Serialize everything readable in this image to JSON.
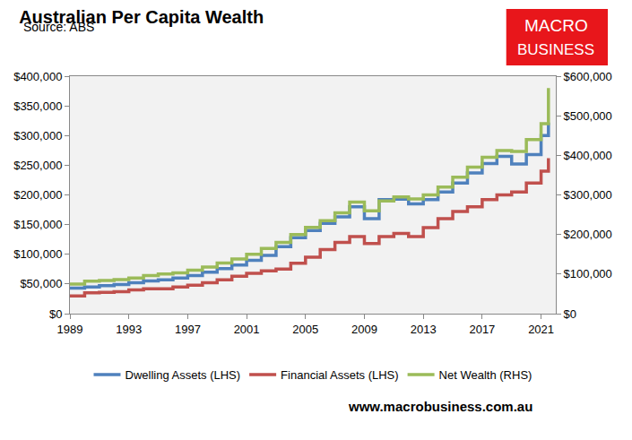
{
  "chart_data": {
    "type": "line",
    "title": "Australian Per Capita Wealth",
    "subtitle": "Source: ABS",
    "annotations": [
      "MACRO",
      "BUSINESS",
      "www.macrobusiness.com.au"
    ],
    "line_style": "step",
    "grid": false,
    "legend": "bottom",
    "x": [
      1989,
      1990,
      1991,
      1992,
      1993,
      1994,
      1995,
      1996,
      1997,
      1998,
      1999,
      2000,
      2001,
      2002,
      2003,
      2004,
      2005,
      2006,
      2007,
      2008,
      2009,
      2010,
      2011,
      2012,
      2013,
      2014,
      2015,
      2016,
      2017,
      2018,
      2019,
      2020,
      2021,
      2021.5
    ],
    "series": [
      {
        "name": "Dwelling Assets (LHS)",
        "color": "#4f81bd",
        "values": [
          43000,
          45000,
          47000,
          49000,
          52000,
          55000,
          57000,
          60000,
          64000,
          70000,
          76000,
          82000,
          90000,
          98000,
          113000,
          128000,
          140000,
          152000,
          163000,
          180000,
          160000,
          192000,
          193000,
          185000,
          192000,
          205000,
          220000,
          237000,
          253000,
          265000,
          252000,
          268000,
          300000,
          322000
        ]
      },
      {
        "name": "Financial Assets (LHS)",
        "color": "#c0504d",
        "values": [
          30000,
          35000,
          36000,
          37000,
          40000,
          42000,
          42000,
          45000,
          48000,
          52000,
          57000,
          63000,
          68000,
          72000,
          75000,
          85000,
          95000,
          108000,
          120000,
          130000,
          118000,
          130000,
          135000,
          130000,
          145000,
          160000,
          172000,
          180000,
          192000,
          200000,
          205000,
          220000,
          240000,
          262000
        ]
      },
      {
        "name": "Net Wealth (RHS)",
        "color": "#9bbb59",
        "axis": "y2",
        "values": [
          75000,
          82000,
          84000,
          86000,
          90000,
          96000,
          100000,
          103000,
          110000,
          118000,
          128000,
          138000,
          150000,
          165000,
          180000,
          200000,
          218000,
          235000,
          255000,
          282000,
          260000,
          285000,
          295000,
          290000,
          300000,
          320000,
          345000,
          370000,
          395000,
          412000,
          410000,
          440000,
          480000,
          570000
        ]
      }
    ],
    "xlim": [
      1989,
      2022
    ],
    "xticks": [
      1989,
      1993,
      1997,
      2001,
      2005,
      2009,
      2013,
      2017,
      2021
    ],
    "ylim": [
      0,
      400000
    ],
    "yticks": [
      {
        "value": 0,
        "label": "$0"
      },
      {
        "value": 50000,
        "label": "$50,000"
      },
      {
        "value": 100000,
        "label": "$100,000"
      },
      {
        "value": 150000,
        "label": "$150,000"
      },
      {
        "value": 200000,
        "label": "$200,000"
      },
      {
        "value": 250000,
        "label": "$250,000"
      },
      {
        "value": 300000,
        "label": "$300,000"
      },
      {
        "value": 350000,
        "label": "$350,000"
      },
      {
        "value": 400000,
        "label": "$400,000"
      }
    ],
    "y2lim": [
      0,
      600000
    ],
    "y2ticks": [
      {
        "value": 0,
        "label": "$0"
      },
      {
        "value": 100000,
        "label": "$100,000"
      },
      {
        "value": 200000,
        "label": "$200,000"
      },
      {
        "value": 300000,
        "label": "$300,000"
      },
      {
        "value": 400000,
        "label": "$400,000"
      },
      {
        "value": 500000,
        "label": "$500,000"
      },
      {
        "value": 600000,
        "label": "$600,000"
      }
    ]
  }
}
